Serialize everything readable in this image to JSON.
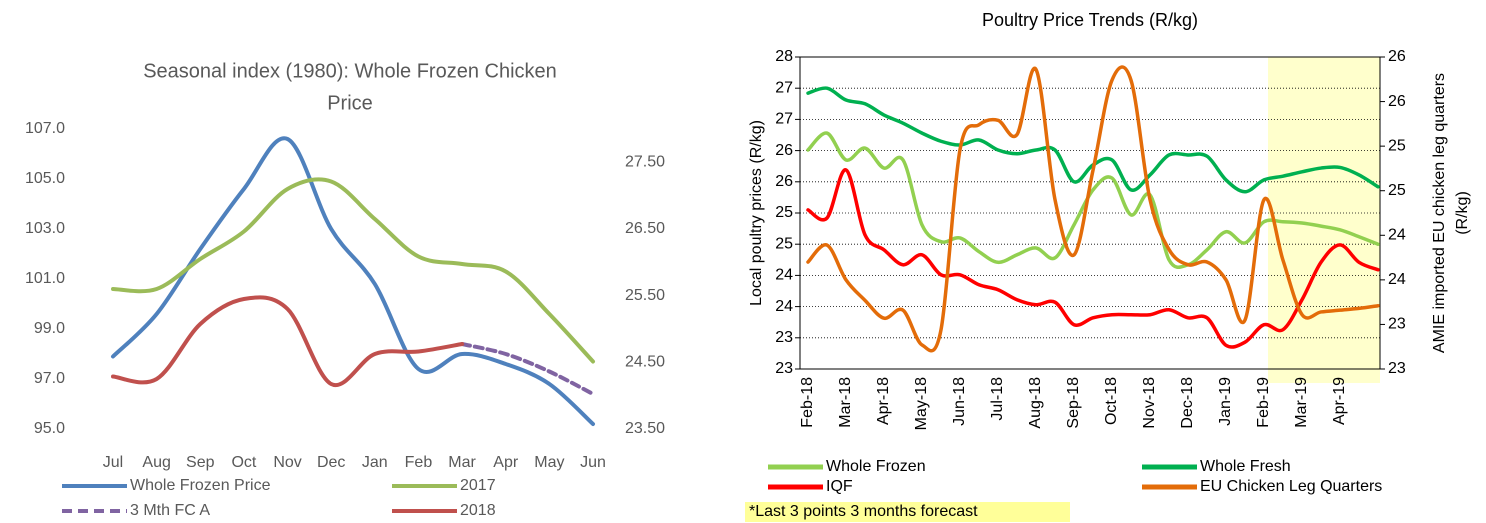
{
  "chart_data": [
    {
      "type": "line",
      "title": [
        "Seasonal index (1980): Whole Frozen Chicken",
        "Price"
      ],
      "categories": [
        "Jul",
        "Aug",
        "Sep",
        "Oct",
        "Nov",
        "Dec",
        "Jan",
        "Feb",
        "Mar",
        "Apr",
        "May",
        "Jun"
      ],
      "series": [
        {
          "name": "Whole Frozen Price",
          "color": "#4f81bd",
          "values": [
            97.9,
            99.6,
            102.2,
            104.6,
            106.6,
            103.0,
            100.8,
            97.4,
            98.0,
            97.6,
            96.8,
            95.2
          ]
        },
        {
          "name": "2017",
          "color": "#9bbb59",
          "values": [
            100.6,
            100.6,
            101.8,
            102.9,
            104.6,
            104.9,
            103.4,
            101.9,
            101.6,
            101.3,
            99.6,
            97.7
          ]
        },
        {
          "name": "3 Mth FC A",
          "color": "#8064a2",
          "style": "dashed",
          "values": [
            null,
            null,
            null,
            null,
            null,
            null,
            null,
            null,
            98.4,
            98.0,
            97.3,
            96.4
          ]
        },
        {
          "name": "2018",
          "color": "#c0504d",
          "values": [
            97.1,
            97.0,
            99.2,
            100.2,
            99.8,
            96.8,
            98.0,
            98.1,
            98.4,
            null,
            null,
            null
          ]
        }
      ],
      "ylim": [
        95,
        107
      ],
      "yticks": [
        {
          "value": 95,
          "label": "95.0"
        },
        {
          "value": 97,
          "label": "97.0"
        },
        {
          "value": 99,
          "label": "99.0"
        },
        {
          "value": 101,
          "label": "101.0"
        },
        {
          "value": 103,
          "label": "103.0"
        },
        {
          "value": 105,
          "label": "105.0"
        },
        {
          "value": 107,
          "label": "107.0"
        }
      ],
      "y2lim": [
        23.5,
        28
      ],
      "y2ticks": [
        {
          "value": 23.5,
          "label": "23.50"
        },
        {
          "value": 24.5,
          "label": "24.50"
        },
        {
          "value": 25.5,
          "label": "25.50"
        },
        {
          "value": 26.5,
          "label": "26.50"
        },
        {
          "value": 27.5,
          "label": "27.50"
        }
      ],
      "grid": false
    },
    {
      "type": "line",
      "title": "Poultry Price Trends (R/kg)",
      "ylabel": "Local poultry prices (R/kg)",
      "y2label": [
        "AMIE imported EU chicken leg quarters",
        "(R/kg)"
      ],
      "note": "*Last 3 points 3 months forecast",
      "categories": [
        "Feb-18",
        null,
        "Mar-18",
        null,
        "Apr-18",
        null,
        "May-18",
        null,
        "Jun-18",
        null,
        "Jul-18",
        null,
        "Aug-18",
        null,
        "Sep-18",
        null,
        "Oct-18",
        null,
        "Nov-18",
        null,
        "Dec-18",
        null,
        "Jan-19",
        null,
        "Feb-19",
        null,
        "Mar-19",
        null,
        "Apr-19",
        null,
        null
      ],
      "series": [
        {
          "name": "Whole Frozen",
          "color": "#92d050",
          "values": [
            26.01,
            26.28,
            25.85,
            26.04,
            25.72,
            25.85,
            24.81,
            24.54,
            24.6,
            24.38,
            24.21,
            24.33,
            24.44,
            24.28,
            24.81,
            25.37,
            25.56,
            24.97,
            25.29,
            24.25,
            24.17,
            24.41,
            24.7,
            24.52,
            24.86,
            24.86,
            24.84,
            24.79,
            24.73,
            24.62,
            24.5
          ]
        },
        {
          "name": "Whole Fresh",
          "color": "#00b050",
          "values": [
            26.92,
            27.0,
            26.81,
            26.75,
            26.57,
            26.44,
            26.28,
            26.15,
            26.09,
            26.17,
            26.01,
            25.95,
            26.01,
            26.01,
            25.5,
            25.77,
            25.85,
            25.37,
            25.61,
            25.93,
            25.93,
            25.91,
            25.53,
            25.34,
            25.53,
            25.59,
            25.66,
            25.72,
            25.73,
            25.61,
            25.42
          ]
        },
        {
          "name": "IQF",
          "color": "#ff0000",
          "values": [
            25.05,
            24.92,
            25.69,
            24.65,
            24.41,
            24.17,
            24.33,
            24.01,
            24.01,
            23.85,
            23.77,
            23.61,
            23.53,
            23.57,
            23.21,
            23.32,
            23.37,
            23.37,
            23.37,
            23.45,
            23.32,
            23.32,
            22.88,
            22.93,
            23.21,
            23.13,
            23.61,
            24.21,
            24.49,
            24.21,
            24.09
          ]
        },
        {
          "name": "EU Chicken Leg Quarters",
          "color": "#e36c09",
          "axis": "y2",
          "values": [
            23.7,
            23.89,
            23.5,
            23.27,
            23.07,
            23.16,
            22.77,
            22.94,
            24.96,
            25.24,
            25.29,
            25.13,
            25.86,
            24.4,
            23.78,
            24.73,
            25.74,
            25.74,
            24.4,
            23.84,
            23.67,
            23.7,
            23.5,
            23.05,
            24.4,
            23.72,
            23.11,
            23.14,
            23.16,
            23.18,
            23.21
          ]
        }
      ],
      "ylim": [
        22.5,
        27.5
      ],
      "yticks": [
        {
          "value": 22.5,
          "label": "23"
        },
        23,
        {
          "value": 23.5,
          "label": "24"
        },
        24,
        {
          "value": 24.5,
          "label": "25"
        },
        25,
        {
          "value": 25.5,
          "label": "26"
        },
        26,
        {
          "value": 26.5,
          "label": "27"
        },
        27,
        {
          "value": 27.5,
          "label": "28"
        }
      ],
      "y2lim": [
        22.5,
        26
      ],
      "y2ticks": [
        {
          "value": 22.5,
          "label": "23"
        },
        23,
        {
          "value": 23.5,
          "label": "24"
        },
        24,
        {
          "value": 24.5,
          "label": "25"
        },
        25,
        {
          "value": 25.5,
          "label": "26"
        },
        26
      ],
      "grid": true
    }
  ]
}
